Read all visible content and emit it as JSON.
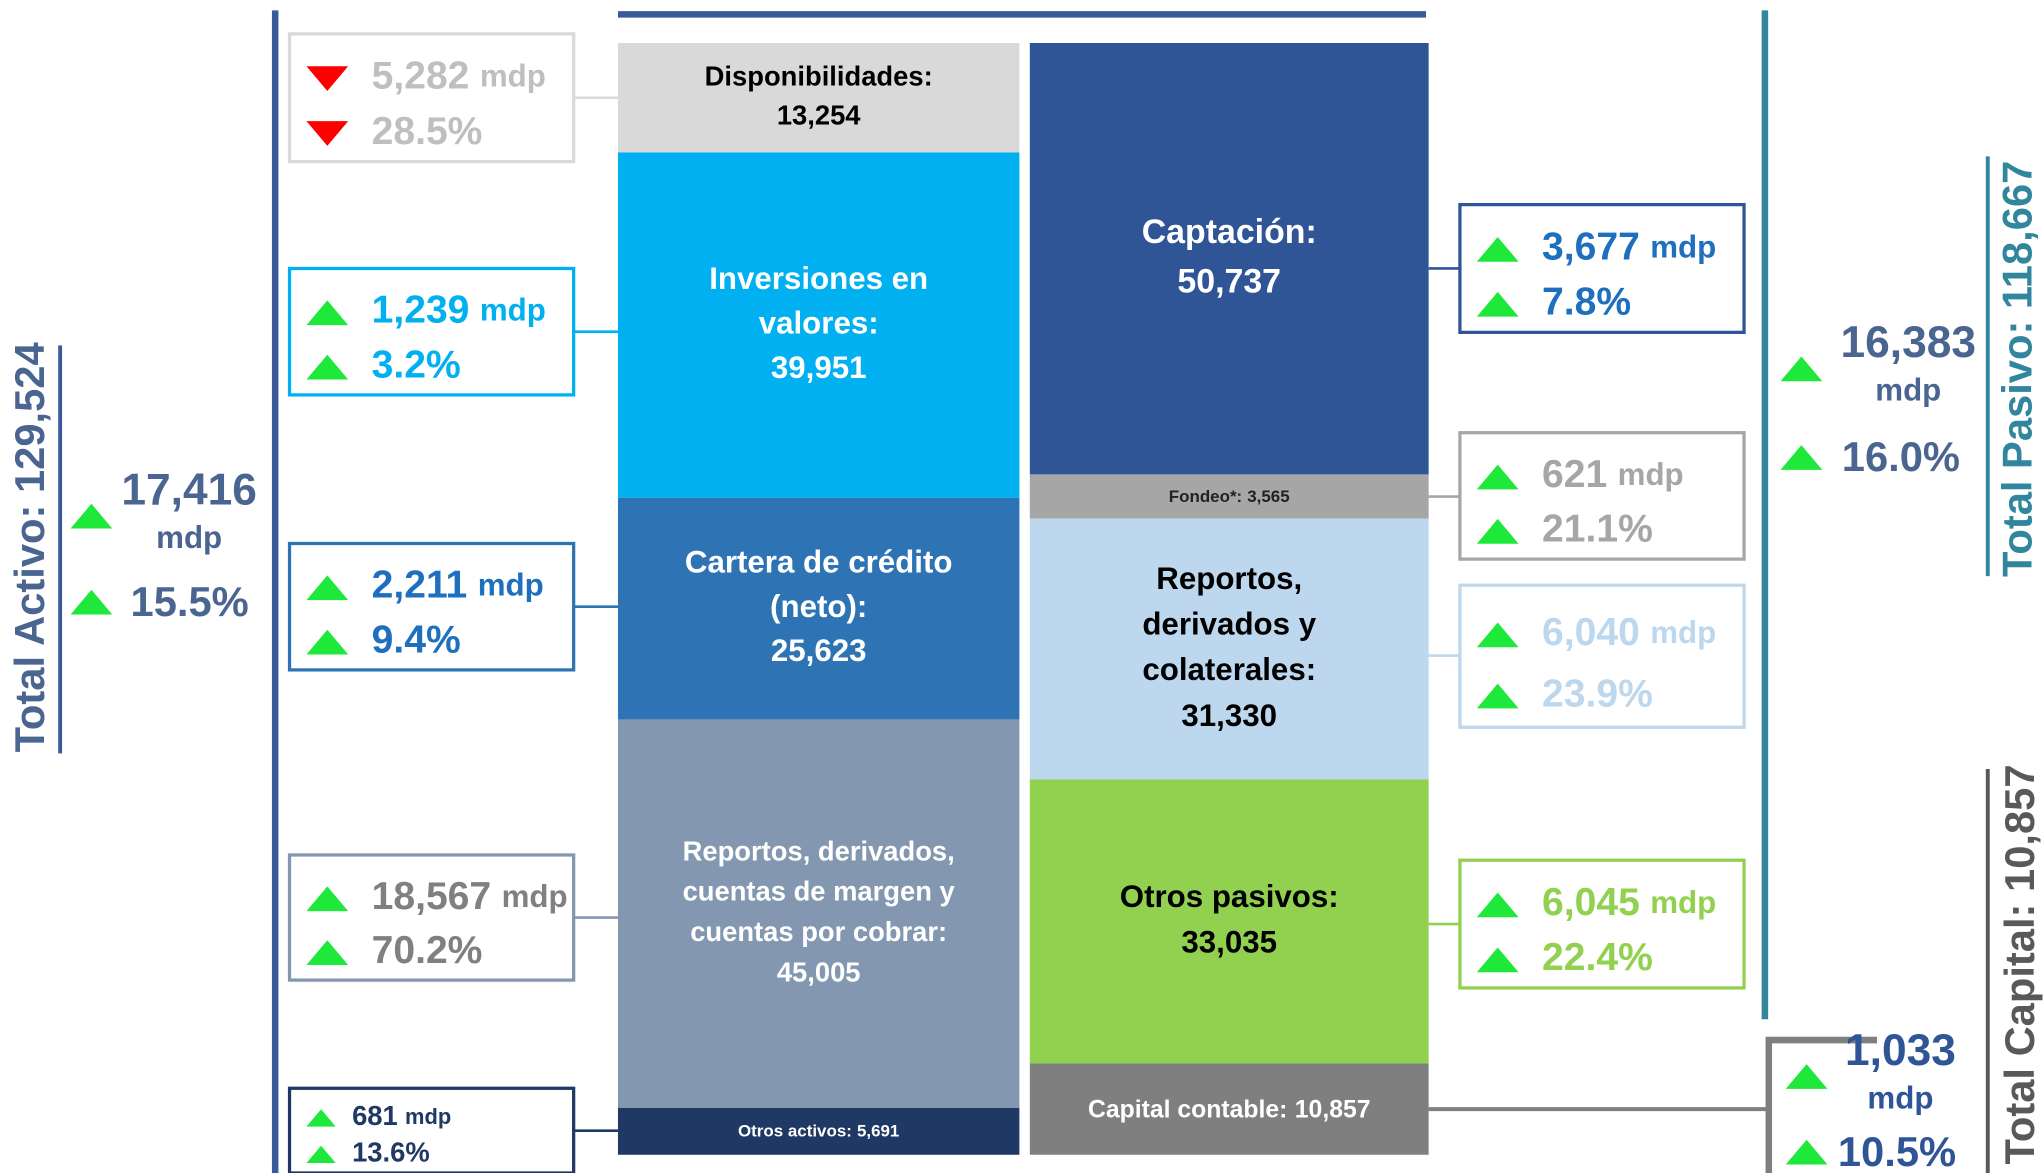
{
  "assets": {
    "total_label": "Total Activo: 129,524",
    "change": {
      "amount": "17,416",
      "unit": "mdp",
      "pct": "15.5%",
      "direction": "up"
    },
    "blocks": [
      {
        "label_lines": [
          "Disponibilidades:"
        ],
        "value": "13,254",
        "change": {
          "amount": "5,282",
          "unit": "mdp",
          "pct": "28.5%",
          "direction": "down"
        }
      },
      {
        "label_lines": [
          "Inversiones en",
          "valores:"
        ],
        "value": "39,951",
        "change": {
          "amount": "1,239",
          "unit": "mdp",
          "pct": "3.2%",
          "direction": "up"
        }
      },
      {
        "label_lines": [
          "Cartera de crédito",
          "(neto):"
        ],
        "value": "25,623",
        "change": {
          "amount": "2,211",
          "unit": "mdp",
          "pct": "9.4%",
          "direction": "up"
        }
      },
      {
        "label_lines": [
          "Reportos, derivados,",
          "cuentas de margen y",
          "cuentas por cobrar:"
        ],
        "value": "45,005",
        "change": {
          "amount": "18,567",
          "unit": "mdp",
          "pct": "70.2%",
          "direction": "up"
        }
      },
      {
        "label_lines": [
          "Otros activos:"
        ],
        "value": "5,691",
        "change": {
          "amount": "681",
          "unit": "mdp",
          "pct": "13.6%",
          "direction": "up"
        }
      }
    ]
  },
  "liabilities": {
    "total_label": "Total Pasivo: 118,667",
    "change": {
      "amount": "16,383",
      "unit": "mdp",
      "pct": "16.0%",
      "direction": "up"
    },
    "blocks": [
      {
        "label_lines": [
          "Captación:"
        ],
        "value": "50,737",
        "change": {
          "amount": "3,677",
          "unit": "mdp",
          "pct": "7.8%",
          "direction": "up"
        }
      },
      {
        "label_lines": [
          "Fondeo*:"
        ],
        "value": "3,565",
        "change": {
          "amount": "621",
          "unit": "mdp",
          "pct": "21.1%",
          "direction": "up"
        }
      },
      {
        "label_lines": [
          "Reportos,",
          "derivados y",
          "colaterales:"
        ],
        "value": "31,330",
        "change": {
          "amount": "6,040",
          "unit": "mdp",
          "pct": "23.9%",
          "direction": "up"
        }
      },
      {
        "label_lines": [
          "Otros pasivos:"
        ],
        "value": "33,035",
        "change": {
          "amount": "6,045",
          "unit": "mdp",
          "pct": "22.4%",
          "direction": "up"
        }
      }
    ]
  },
  "capital": {
    "total_label": "Total Capital: 10,857",
    "change": {
      "amount": "1,033",
      "unit": "mdp",
      "pct": "10.5%",
      "direction": "up"
    },
    "block": {
      "label_lines": [
        "Capital contable:"
      ],
      "value": "10,857"
    }
  }
}
